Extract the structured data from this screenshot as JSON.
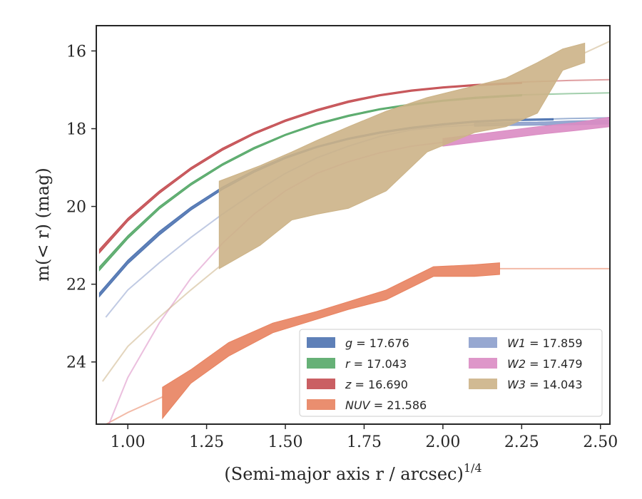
{
  "chart_data": {
    "type": "line",
    "xlabel": "(Semi-major axis r / arcsec)",
    "xlabel_sup": "1/4",
    "ylabel": "m(< r) (mag)",
    "xlim": [
      0.9,
      2.53
    ],
    "ylim": [
      25.6,
      15.35
    ],
    "y_inverted": true,
    "xticks": [
      1.0,
      1.25,
      1.5,
      1.75,
      2.0,
      2.25,
      2.5
    ],
    "xtick_labels": [
      "1.00",
      "1.25",
      "1.50",
      "1.75",
      "2.00",
      "2.25",
      "2.50"
    ],
    "yticks": [
      16,
      18,
      20,
      22,
      24
    ],
    "ytick_labels": [
      "16",
      "18",
      "20",
      "22",
      "24"
    ],
    "grid": false,
    "legend_position": "bottom-right",
    "series": [
      {
        "name": "g",
        "value": "17.676",
        "color": "#4c72b0",
        "band_x": [
          0.91,
          1.0,
          1.1,
          1.2,
          1.3,
          1.4,
          1.5,
          1.6,
          1.7,
          1.8,
          1.9,
          2.0,
          2.1,
          2.2,
          2.35
        ],
        "band_lo": [
          22.22,
          21.38,
          20.64,
          20.02,
          19.5,
          19.07,
          18.72,
          18.45,
          18.24,
          18.08,
          17.96,
          17.87,
          17.8,
          17.76,
          17.74
        ],
        "band_hi": [
          22.32,
          21.48,
          20.74,
          20.1,
          19.57,
          19.13,
          18.77,
          18.49,
          18.28,
          18.12,
          18.0,
          17.91,
          17.84,
          17.8,
          17.78
        ],
        "line_x": [
          2.35,
          2.4,
          2.53
        ],
        "line_y": [
          17.75,
          17.74,
          17.72
        ]
      },
      {
        "name": "r",
        "value": "17.043",
        "color": "#55a868",
        "band_x": [
          0.91,
          1.0,
          1.1,
          1.2,
          1.3,
          1.4,
          1.5,
          1.6,
          1.7,
          1.8,
          1.9,
          2.0,
          2.1,
          2.2,
          2.25
        ],
        "band_lo": [
          21.55,
          20.75,
          20.0,
          19.4,
          18.9,
          18.48,
          18.14,
          17.86,
          17.65,
          17.48,
          17.36,
          17.26,
          17.19,
          17.14,
          17.12
        ],
        "band_hi": [
          21.65,
          20.83,
          20.07,
          19.46,
          18.95,
          18.53,
          18.18,
          17.9,
          17.69,
          17.52,
          17.4,
          17.3,
          17.23,
          17.18,
          17.16
        ],
        "line_x": [
          2.25,
          2.4,
          2.53
        ],
        "line_y": [
          17.13,
          17.1,
          17.08
        ]
      },
      {
        "name": "z",
        "value": "16.690",
        "color": "#c44e52",
        "band_x": [
          0.91,
          1.0,
          1.1,
          1.2,
          1.3,
          1.4,
          1.5,
          1.6,
          1.7,
          1.8,
          1.9,
          2.0,
          2.1,
          2.2,
          2.25
        ],
        "band_lo": [
          21.1,
          20.3,
          19.6,
          19.0,
          18.5,
          18.1,
          17.77,
          17.5,
          17.28,
          17.12,
          17.0,
          16.92,
          16.86,
          16.82,
          16.8
        ],
        "band_hi": [
          21.2,
          20.38,
          19.67,
          19.06,
          18.56,
          18.15,
          17.82,
          17.55,
          17.33,
          17.16,
          17.04,
          16.96,
          16.9,
          16.86,
          16.84
        ],
        "line_x": [
          2.25,
          2.4,
          2.53
        ],
        "line_y": [
          16.8,
          16.76,
          16.74
        ]
      },
      {
        "name": "NUV",
        "value": "21.586",
        "color": "#e8825f",
        "band_x": [
          1.11,
          1.2,
          1.32,
          1.46,
          1.6,
          1.7,
          1.82,
          1.92,
          1.97,
          2.1,
          2.18
        ],
        "band_lo": [
          24.65,
          24.2,
          23.5,
          23.0,
          22.7,
          22.45,
          22.15,
          21.75,
          21.55,
          21.5,
          21.45
        ],
        "band_hi": [
          25.45,
          24.55,
          23.85,
          23.25,
          22.9,
          22.65,
          22.4,
          22.0,
          21.8,
          21.8,
          21.75
        ],
        "line_x": [
          0.92,
          1.0,
          1.11
        ],
        "line_y": [
          25.65,
          25.3,
          24.9
        ],
        "tail_x": [
          2.18,
          2.53
        ],
        "tail_y": [
          21.6,
          21.6
        ]
      },
      {
        "name": "W1",
        "value": "17.859",
        "color": "#8c9fcc",
        "band_x": [
          2.1,
          2.2,
          2.3,
          2.4,
          2.53
        ],
        "band_lo": [
          17.86,
          17.84,
          17.83,
          17.8,
          17.78
        ],
        "band_hi": [
          17.94,
          17.92,
          17.91,
          17.9,
          17.88
        ],
        "line_x": [
          0.93,
          1.0,
          1.1,
          1.2,
          1.3,
          1.4,
          1.5,
          1.6,
          1.7,
          1.8,
          1.9,
          2.0,
          2.1
        ],
        "line_y": [
          22.85,
          22.15,
          21.45,
          20.8,
          20.2,
          19.65,
          19.15,
          18.75,
          18.45,
          18.2,
          18.03,
          17.95,
          17.9
        ]
      },
      {
        "name": "W2",
        "value": "17.479",
        "color": "#da8bc3",
        "band_x": [
          2.0,
          2.1,
          2.2,
          2.3,
          2.42,
          2.53
        ],
        "band_lo": [
          18.25,
          18.15,
          18.05,
          17.95,
          17.85,
          17.7
        ],
        "band_hi": [
          18.45,
          18.35,
          18.25,
          18.15,
          18.05,
          17.95
        ],
        "line_x": [
          0.94,
          1.0,
          1.1,
          1.2,
          1.3,
          1.4,
          1.5,
          1.6,
          1.7,
          1.8,
          1.9,
          2.0
        ],
        "line_y": [
          25.6,
          24.4,
          23.0,
          21.85,
          20.95,
          20.2,
          19.6,
          19.15,
          18.85,
          18.62,
          18.45,
          18.35
        ]
      },
      {
        "name": "W3",
        "value": "14.043",
        "color": "#ccb387",
        "band_x": [
          1.29,
          1.42,
          1.52,
          1.6,
          1.7,
          1.82,
          1.95,
          2.1,
          2.2,
          2.3,
          2.38,
          2.45
        ],
        "band_lo": [
          19.35,
          18.95,
          18.6,
          18.3,
          17.95,
          17.55,
          17.2,
          16.9,
          16.7,
          16.3,
          15.95,
          15.8
        ],
        "band_hi": [
          21.6,
          21.0,
          20.35,
          20.2,
          20.05,
          19.6,
          18.6,
          18.1,
          17.95,
          17.6,
          16.5,
          16.3
        ],
        "line_x": [
          0.92,
          1.0,
          1.1,
          1.2,
          1.29
        ],
        "line_y": [
          24.5,
          23.6,
          22.85,
          22.15,
          21.55
        ],
        "tail_x": [
          2.45,
          2.53
        ],
        "tail_y": [
          16.05,
          15.75
        ]
      }
    ]
  }
}
